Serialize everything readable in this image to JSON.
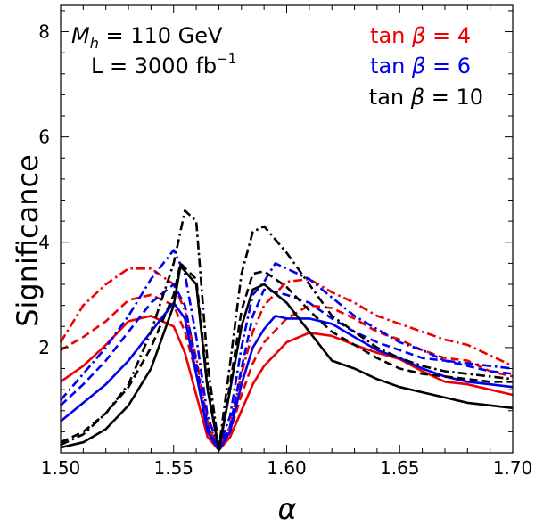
{
  "chart_data": {
    "type": "line",
    "xlabel": "α",
    "ylabel": "Significance",
    "xlim": [
      1.5,
      1.7
    ],
    "ylim": [
      0.0,
      8.5
    ],
    "x_ticks": [
      "1.50",
      "1.55",
      "1.60",
      "1.65",
      "1.70"
    ],
    "y_ticks": [
      "2",
      "4",
      "6",
      "8"
    ],
    "x_tick_values": [
      1.5,
      1.55,
      1.6,
      1.65,
      1.7
    ],
    "y_tick_values": [
      2,
      4,
      6,
      8
    ],
    "grid": false,
    "annotations": {
      "mass": {
        "sym": "M",
        "sub": "h",
        "rest": " = 110 GeV"
      },
      "lumi": {
        "text": "L = 3000 fb",
        "sup": "−1"
      }
    },
    "legend": [
      {
        "prefix": "tan ",
        "sym": "β",
        "suffix": " = 4",
        "color": "#ee0000"
      },
      {
        "prefix": "tan ",
        "sym": "β",
        "suffix": " = 6",
        "color": "#0000ee"
      },
      {
        "prefix": "tan ",
        "sym": "β",
        "suffix": " = 10",
        "color": "#000000"
      }
    ],
    "series": [
      {
        "tanb": 4,
        "style": "solid",
        "color": "#ee0000",
        "x": [
          1.5,
          1.51,
          1.52,
          1.53,
          1.54,
          1.55,
          1.555,
          1.56,
          1.565,
          1.57,
          1.575,
          1.58,
          1.585,
          1.59,
          1.6,
          1.61,
          1.62,
          1.63,
          1.64,
          1.65,
          1.66,
          1.67,
          1.68,
          1.69,
          1.7
        ],
        "y": [
          1.35,
          1.65,
          2.05,
          2.5,
          2.6,
          2.4,
          1.9,
          1.1,
          0.3,
          0.05,
          0.3,
          0.8,
          1.3,
          1.65,
          2.1,
          2.28,
          2.22,
          2.05,
          1.9,
          1.78,
          1.55,
          1.35,
          1.3,
          1.2,
          1.1
        ]
      },
      {
        "tanb": 4,
        "style": "dashed",
        "color": "#ee0000",
        "x": [
          1.5,
          1.51,
          1.52,
          1.53,
          1.54,
          1.55,
          1.555,
          1.56,
          1.565,
          1.57,
          1.575,
          1.58,
          1.585,
          1.59,
          1.6,
          1.61,
          1.62,
          1.63,
          1.64,
          1.65,
          1.66,
          1.67,
          1.68,
          1.69,
          1.7
        ],
        "y": [
          1.95,
          2.2,
          2.5,
          2.9,
          3.0,
          2.8,
          2.3,
          1.5,
          0.5,
          0.08,
          0.4,
          1.1,
          1.7,
          2.1,
          2.55,
          2.8,
          2.75,
          2.55,
          2.3,
          2.15,
          1.95,
          1.8,
          1.75,
          1.55,
          1.45
        ]
      },
      {
        "tanb": 4,
        "style": "dashdot",
        "color": "#ee0000",
        "x": [
          1.5,
          1.51,
          1.52,
          1.53,
          1.54,
          1.55,
          1.555,
          1.56,
          1.565,
          1.57,
          1.575,
          1.58,
          1.585,
          1.59,
          1.6,
          1.61,
          1.62,
          1.63,
          1.64,
          1.65,
          1.66,
          1.67,
          1.68,
          1.69,
          1.7
        ],
        "y": [
          2.1,
          2.8,
          3.2,
          3.5,
          3.5,
          3.2,
          2.7,
          1.8,
          0.6,
          0.1,
          0.5,
          1.5,
          2.3,
          2.8,
          3.25,
          3.3,
          3.05,
          2.85,
          2.6,
          2.45,
          2.3,
          2.15,
          2.05,
          1.85,
          1.65
        ]
      },
      {
        "tanb": 6,
        "style": "solid",
        "color": "#0000ee",
        "x": [
          1.5,
          1.51,
          1.52,
          1.53,
          1.54,
          1.55,
          1.555,
          1.56,
          1.565,
          1.57,
          1.575,
          1.58,
          1.585,
          1.59,
          1.595,
          1.6,
          1.61,
          1.62,
          1.63,
          1.64,
          1.65,
          1.66,
          1.67,
          1.68,
          1.69,
          1.7
        ],
        "y": [
          0.6,
          0.95,
          1.3,
          1.75,
          2.3,
          2.85,
          2.55,
          1.5,
          0.4,
          0.05,
          0.4,
          1.3,
          2.0,
          2.35,
          2.6,
          2.55,
          2.55,
          2.45,
          2.2,
          1.95,
          1.8,
          1.6,
          1.45,
          1.35,
          1.3,
          1.25
        ]
      },
      {
        "tanb": 6,
        "style": "dashed",
        "color": "#0000ee",
        "x": [
          1.5,
          1.51,
          1.52,
          1.53,
          1.54,
          1.55,
          1.555,
          1.56,
          1.565,
          1.57,
          1.575,
          1.58,
          1.585,
          1.59,
          1.6,
          1.61,
          1.62,
          1.63,
          1.64,
          1.65,
          1.66,
          1.67,
          1.68,
          1.69,
          1.7
        ],
        "y": [
          0.9,
          1.3,
          1.75,
          2.3,
          2.85,
          3.2,
          2.8,
          1.7,
          0.5,
          0.07,
          0.5,
          1.6,
          2.6,
          3.1,
          3.0,
          2.85,
          2.55,
          2.3,
          2.1,
          1.95,
          1.8,
          1.75,
          1.65,
          1.55,
          1.5
        ]
      },
      {
        "tanb": 6,
        "style": "dashdot",
        "color": "#0000ee",
        "x": [
          1.5,
          1.51,
          1.52,
          1.53,
          1.54,
          1.55,
          1.555,
          1.56,
          1.565,
          1.57,
          1.575,
          1.58,
          1.585,
          1.59,
          1.595,
          1.6,
          1.61,
          1.62,
          1.63,
          1.64,
          1.65,
          1.66,
          1.67,
          1.68,
          1.69,
          1.7
        ],
        "y": [
          1.0,
          1.5,
          2.0,
          2.6,
          3.3,
          3.85,
          3.4,
          2.2,
          0.7,
          0.1,
          0.7,
          2.0,
          3.0,
          3.25,
          3.6,
          3.5,
          3.3,
          2.95,
          2.6,
          2.35,
          2.1,
          1.95,
          1.75,
          1.7,
          1.65,
          1.6
        ]
      },
      {
        "tanb": 10,
        "style": "solid",
        "color": "#000000",
        "x": [
          1.5,
          1.51,
          1.52,
          1.53,
          1.54,
          1.55,
          1.553,
          1.56,
          1.565,
          1.57,
          1.575,
          1.58,
          1.585,
          1.59,
          1.6,
          1.61,
          1.62,
          1.63,
          1.64,
          1.65,
          1.66,
          1.67,
          1.68,
          1.69,
          1.7
        ],
        "y": [
          0.1,
          0.2,
          0.45,
          0.9,
          1.6,
          2.8,
          3.55,
          3.2,
          1.2,
          0.05,
          1.2,
          2.4,
          3.1,
          3.2,
          2.85,
          2.3,
          1.75,
          1.6,
          1.4,
          1.25,
          1.15,
          1.05,
          0.95,
          0.9,
          0.85
        ]
      },
      {
        "tanb": 10,
        "style": "dashed",
        "color": "#000000",
        "x": [
          1.5,
          1.51,
          1.52,
          1.53,
          1.54,
          1.55,
          1.553,
          1.56,
          1.565,
          1.57,
          1.575,
          1.58,
          1.585,
          1.59,
          1.6,
          1.61,
          1.62,
          1.63,
          1.64,
          1.65,
          1.66,
          1.67,
          1.68,
          1.69,
          1.7
        ],
        "y": [
          0.2,
          0.4,
          0.75,
          1.25,
          2.0,
          3.0,
          3.6,
          3.3,
          1.3,
          0.06,
          1.3,
          2.7,
          3.4,
          3.45,
          3.15,
          2.7,
          2.3,
          2.05,
          1.8,
          1.6,
          1.5,
          1.45,
          1.4,
          1.35,
          1.35
        ]
      },
      {
        "tanb": 10,
        "style": "dashdot",
        "color": "#000000",
        "x": [
          1.5,
          1.51,
          1.52,
          1.53,
          1.54,
          1.55,
          1.555,
          1.56,
          1.565,
          1.57,
          1.575,
          1.58,
          1.585,
          1.59,
          1.6,
          1.61,
          1.62,
          1.63,
          1.64,
          1.65,
          1.66,
          1.67,
          1.68,
          1.69,
          1.7
        ],
        "y": [
          0.15,
          0.35,
          0.75,
          1.3,
          2.3,
          3.6,
          4.6,
          4.4,
          1.7,
          0.08,
          1.7,
          3.4,
          4.2,
          4.3,
          3.8,
          3.2,
          2.6,
          2.3,
          2.0,
          1.8,
          1.65,
          1.55,
          1.5,
          1.45,
          1.4
        ]
      }
    ]
  }
}
